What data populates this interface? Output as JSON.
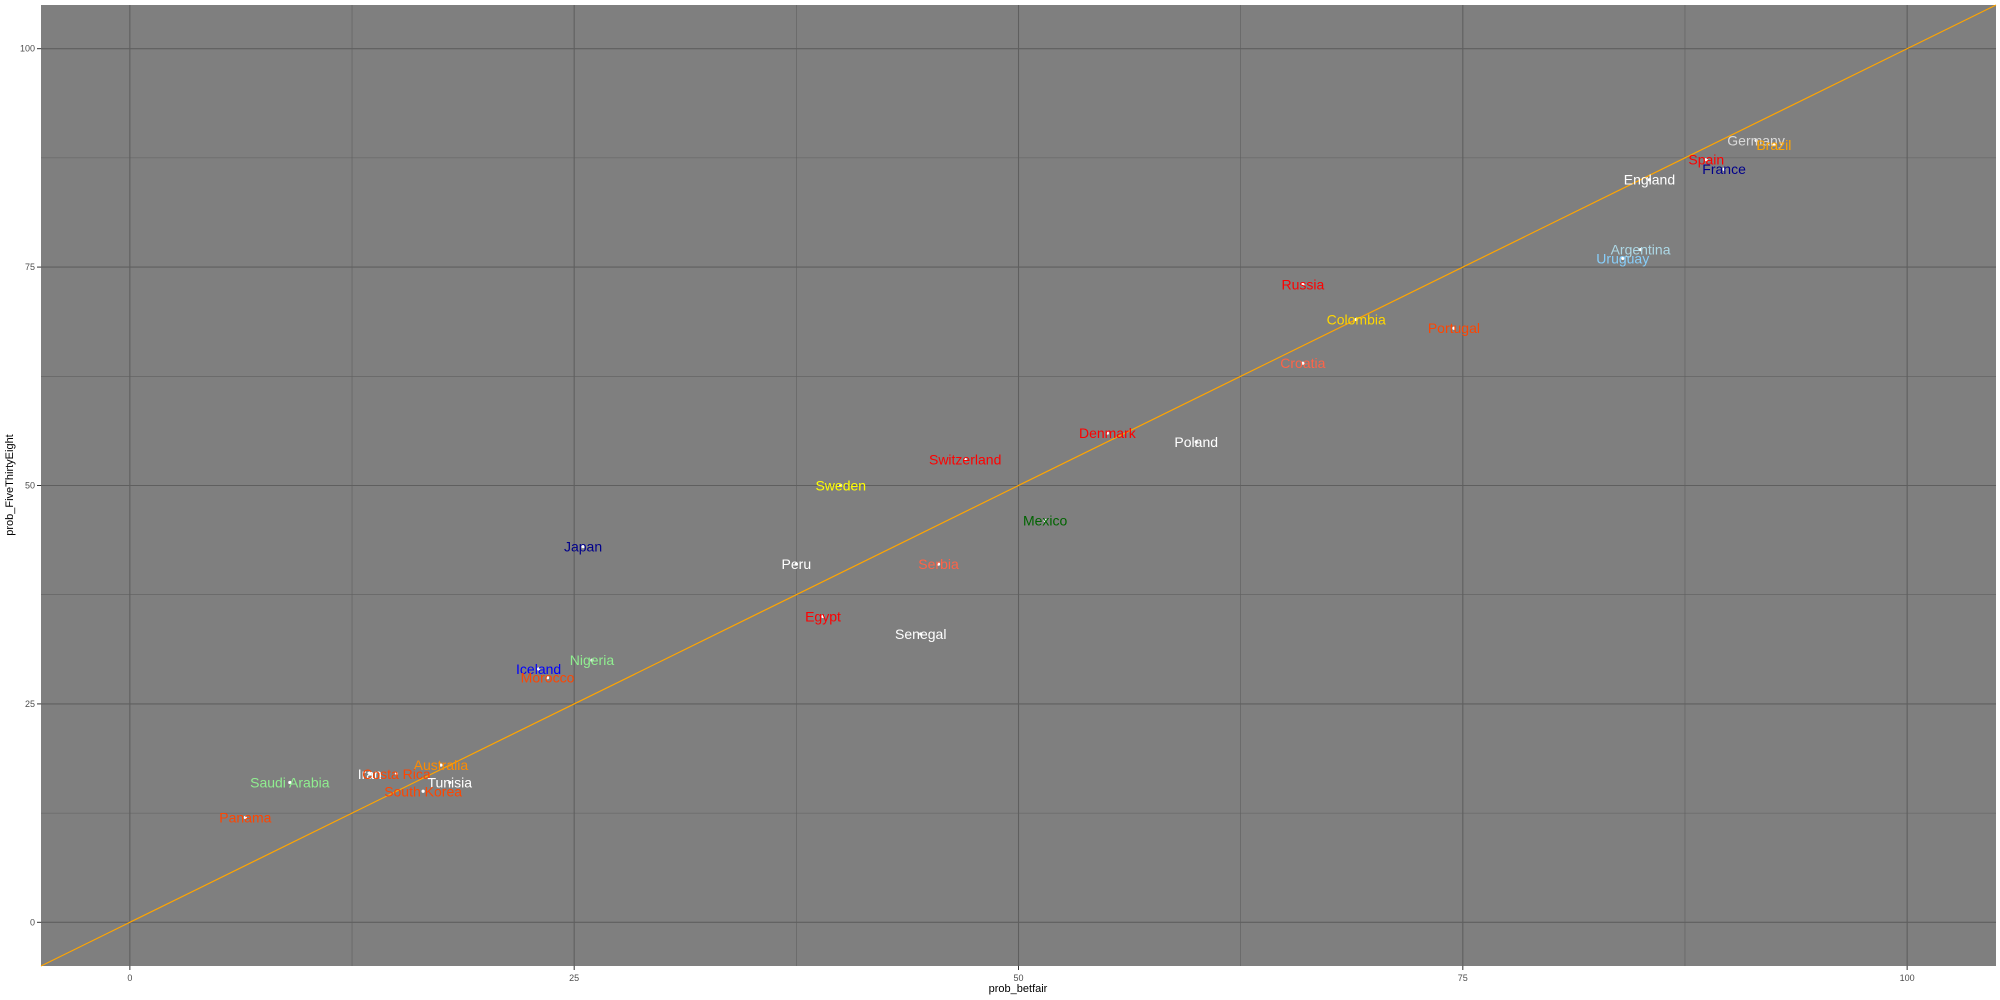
{
  "chart_data": {
    "type": "scatter",
    "xlabel": "prob_betfair",
    "ylabel": "prob_FiveThirtyEight",
    "xlim": [
      -5,
      105
    ],
    "ylim": [
      -5,
      105
    ],
    "x_ticks": [
      "0",
      "25",
      "50",
      "75",
      "100"
    ],
    "y_ticks": [
      "0",
      "25",
      "50",
      "75",
      "100"
    ],
    "tick_values": [
      0,
      25,
      50,
      75,
      100
    ],
    "grid": true,
    "panel_background": "#7f7f7f",
    "grid_color": "#5f5f5f",
    "reference_line": {
      "slope": 1,
      "intercept": 0,
      "color": "#ffa500"
    },
    "points": [
      {
        "label": "Germany",
        "x": 91.5,
        "y": 89.5,
        "color": "#d9d9d9"
      },
      {
        "label": "Brazil",
        "x": 92.5,
        "y": 89.0,
        "color": "#ffa500"
      },
      {
        "label": "Spain",
        "x": 88.7,
        "y": 87.3,
        "color": "#ff0000"
      },
      {
        "label": "France",
        "x": 89.7,
        "y": 86.2,
        "color": "#00008b"
      },
      {
        "label": "England",
        "x": 85.5,
        "y": 85.0,
        "color": "#ffffff"
      },
      {
        "label": "Argentina",
        "x": 85.0,
        "y": 77.0,
        "color": "#add8e6"
      },
      {
        "label": "Uruguay",
        "x": 84.0,
        "y": 76.0,
        "color": "#87cefa"
      },
      {
        "label": "Russia",
        "x": 66.0,
        "y": 73.0,
        "color": "#ff0000"
      },
      {
        "label": "Colombia",
        "x": 69.0,
        "y": 69.0,
        "color": "#ffd700"
      },
      {
        "label": "Portugal",
        "x": 74.5,
        "y": 68.0,
        "color": "#ff4500"
      },
      {
        "label": "Croatia",
        "x": 66.0,
        "y": 64.0,
        "color": "#ff6347"
      },
      {
        "label": "Denmark",
        "x": 55.0,
        "y": 56.0,
        "color": "#ff0000"
      },
      {
        "label": "Poland",
        "x": 60.0,
        "y": 55.0,
        "color": "#ffffff"
      },
      {
        "label": "Switzerland",
        "x": 47.0,
        "y": 53.0,
        "color": "#ff0000"
      },
      {
        "label": "Sweden",
        "x": 40.0,
        "y": 50.0,
        "color": "#ffff00"
      },
      {
        "label": "Mexico",
        "x": 51.5,
        "y": 46.0,
        "color": "#006400"
      },
      {
        "label": "Japan",
        "x": 25.5,
        "y": 43.0,
        "color": "#00008b"
      },
      {
        "label": "Peru",
        "x": 37.5,
        "y": 41.0,
        "color": "#ffffff"
      },
      {
        "label": "Serbia",
        "x": 45.5,
        "y": 41.0,
        "color": "#ff6347"
      },
      {
        "label": "Egypt",
        "x": 39.0,
        "y": 35.0,
        "color": "#ff0000"
      },
      {
        "label": "Senegal",
        "x": 44.5,
        "y": 33.0,
        "color": "#ffffff"
      },
      {
        "label": "Nigeria",
        "x": 26.0,
        "y": 30.0,
        "color": "#90ee90"
      },
      {
        "label": "Iceland",
        "x": 23.0,
        "y": 29.0,
        "color": "#0000ff"
      },
      {
        "label": "Morocco",
        "x": 23.5,
        "y": 28.0,
        "color": "#ff4500"
      },
      {
        "label": "Australia",
        "x": 17.5,
        "y": 18.0,
        "color": "#ff8c00"
      },
      {
        "label": "Iran",
        "x": 13.5,
        "y": 17.0,
        "color": "#ffffff"
      },
      {
        "label": "Costa Rica",
        "x": 15.0,
        "y": 17.0,
        "color": "#ff4500"
      },
      {
        "label": "Saudi Arabia",
        "x": 9.0,
        "y": 16.0,
        "color": "#90ee90"
      },
      {
        "label": "Tunisia",
        "x": 18.0,
        "y": 16.0,
        "color": "#ffffff"
      },
      {
        "label": "South Korea",
        "x": 16.5,
        "y": 15.0,
        "color": "#ff4500"
      },
      {
        "label": "Panama",
        "x": 6.5,
        "y": 12.0,
        "color": "#ff4500"
      }
    ]
  }
}
